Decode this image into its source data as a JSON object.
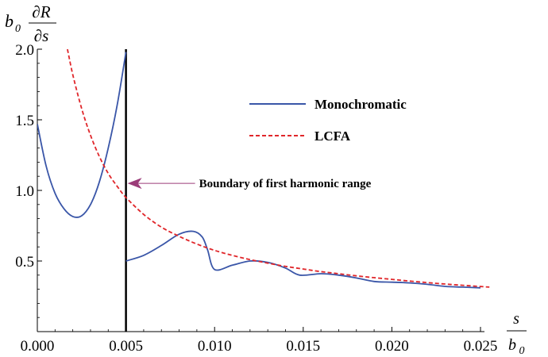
{
  "chart_data": {
    "type": "line",
    "xlim": [
      0,
      0.025
    ],
    "ylim": [
      0,
      2.0
    ],
    "x_ticks": [
      "0.000",
      "0.005",
      "0.010",
      "0.015",
      "0.020",
      "0.025"
    ],
    "x_tick_values": [
      0,
      0.005,
      0.01,
      0.015,
      0.02,
      0.025
    ],
    "y_ticks": [
      "0.5",
      "1.0",
      "1.5",
      "2.0"
    ],
    "y_tick_values": [
      0.5,
      1.0,
      1.5,
      2.0
    ],
    "xlabel": {
      "numerator": "s",
      "denominator": "b",
      "subscript": "0"
    },
    "ylabel": {
      "prefix": "b",
      "prefix_subscript": "0",
      "numerator": "∂R",
      "denominator": "∂s"
    },
    "grid": false,
    "legend_position": "top-right",
    "series": [
      {
        "name": "Monochromatic",
        "style": "solid",
        "color": "#3a56a8",
        "segments": [
          [
            [
              0,
              1.47
            ],
            [
              0.0005,
              1.17
            ],
            [
              0.001,
              0.98
            ],
            [
              0.0015,
              0.87
            ],
            [
              0.002,
              0.815
            ],
            [
              0.0025,
              0.82
            ],
            [
              0.003,
              0.9
            ],
            [
              0.0035,
              1.06
            ],
            [
              0.004,
              1.3
            ],
            [
              0.0045,
              1.6
            ],
            [
              0.005,
              1.98
            ]
          ],
          [
            [
              0.005,
              0.5
            ],
            [
              0.006,
              0.54
            ],
            [
              0.007,
              0.61
            ],
            [
              0.008,
              0.69
            ],
            [
              0.0088,
              0.71
            ],
            [
              0.0093,
              0.67
            ],
            [
              0.0096,
              0.58
            ],
            [
              0.01,
              0.44
            ],
            [
              0.011,
              0.47
            ],
            [
              0.012,
              0.5
            ],
            [
              0.013,
              0.49
            ],
            [
              0.014,
              0.45
            ],
            [
              0.0148,
              0.4
            ],
            [
              0.016,
              0.41
            ],
            [
              0.017,
              0.4
            ],
            [
              0.018,
              0.38
            ],
            [
              0.019,
              0.355
            ],
            [
              0.02,
              0.35
            ],
            [
              0.021,
              0.345
            ],
            [
              0.022,
              0.335
            ],
            [
              0.023,
              0.32
            ],
            [
              0.024,
              0.315
            ],
            [
              0.025,
              0.31
            ]
          ]
        ]
      },
      {
        "name": "LCFA",
        "style": "dashed",
        "color": "#e0262a",
        "segments": [
          [
            [
              0.0017,
              2.0
            ],
            [
              0.002,
              1.82
            ],
            [
              0.0025,
              1.58
            ],
            [
              0.003,
              1.39
            ],
            [
              0.0035,
              1.24
            ],
            [
              0.004,
              1.12
            ],
            [
              0.0045,
              1.03
            ],
            [
              0.005,
              0.95
            ],
            [
              0.006,
              0.83
            ],
            [
              0.007,
              0.74
            ],
            [
              0.008,
              0.675
            ],
            [
              0.009,
              0.62
            ],
            [
              0.01,
              0.575
            ],
            [
              0.011,
              0.54
            ],
            [
              0.012,
              0.51
            ],
            [
              0.013,
              0.485
            ],
            [
              0.014,
              0.462
            ],
            [
              0.015,
              0.443
            ],
            [
              0.016,
              0.425
            ],
            [
              0.017,
              0.41
            ],
            [
              0.018,
              0.395
            ],
            [
              0.019,
              0.382
            ],
            [
              0.02,
              0.37
            ],
            [
              0.021,
              0.358
            ],
            [
              0.022,
              0.347
            ],
            [
              0.023,
              0.337
            ],
            [
              0.024,
              0.328
            ],
            [
              0.0255,
              0.315
            ]
          ]
        ]
      }
    ],
    "vertical_line": {
      "x": 0.005,
      "y_range": [
        0,
        2.0
      ],
      "color": "#000000"
    },
    "annotation": {
      "text": "Boundary of first harmonic range",
      "arrow_to": [
        0.005,
        1.05
      ],
      "arrow_color": "#9b3c79"
    }
  }
}
